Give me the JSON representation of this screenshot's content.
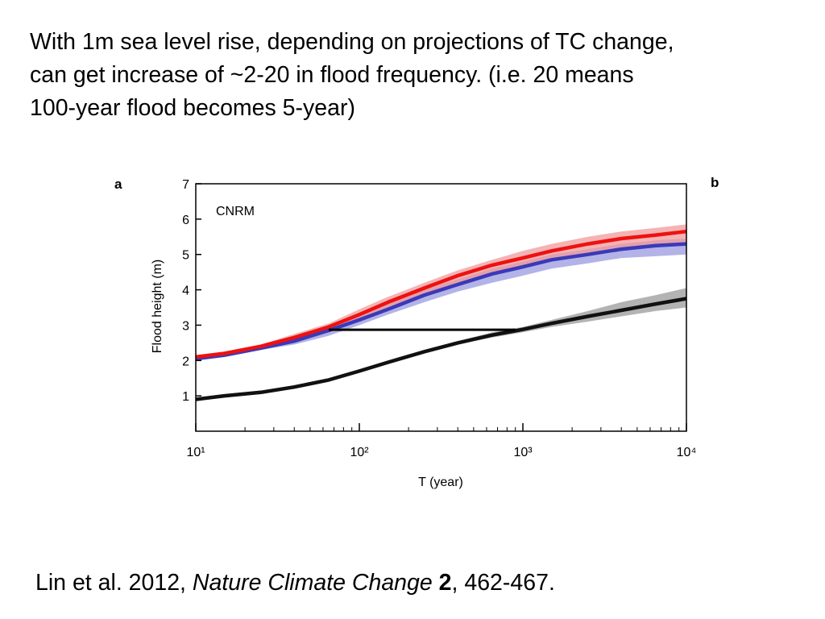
{
  "slide": {
    "headline_lines": [
      "With 1m sea level rise, depending on projections of TC change,",
      "can get increase of ~2-20 in flood frequency.  (i.e. 20 means",
      "100-year flood becomes 5-year)"
    ],
    "citation": {
      "authors_year": "Lin et al. 2012, ",
      "journal": "Nature Climate Change",
      "space": " ",
      "volume": "2",
      "pages": ", 462-467."
    }
  },
  "chart_data": {
    "type": "line",
    "panel_labels": [
      "a",
      "b"
    ],
    "annotation": "CNRM",
    "xlabel": "T (year)",
    "ylabel": "Flood height (m)",
    "x_scale": "log",
    "xlim": [
      10,
      10000
    ],
    "ylim": [
      0,
      7
    ],
    "x_ticks": [
      10,
      100,
      1000,
      10000
    ],
    "x_tick_labels": [
      "10¹",
      "10²",
      "10³",
      "10⁴"
    ],
    "y_ticks": [
      1,
      2,
      3,
      4,
      5,
      6,
      7
    ],
    "grid": false,
    "colors": {
      "red": "#ee1111",
      "red_band": "#f29a9a",
      "blue": "#3a3ab8",
      "blue_band": "#9a9ae0",
      "black": "#111111",
      "gray_band": "#9a9a9a"
    },
    "series": [
      {
        "color": "red",
        "x": [
          10,
          15,
          25,
          40,
          65,
          100,
          150,
          250,
          400,
          650,
          1000,
          1500,
          2500,
          4000,
          6500,
          10000
        ],
        "y": [
          2.1,
          2.2,
          2.4,
          2.65,
          2.95,
          3.3,
          3.65,
          4.05,
          4.4,
          4.7,
          4.9,
          5.1,
          5.3,
          5.45,
          5.55,
          5.65
        ],
        "band_low": [
          2.05,
          2.15,
          2.35,
          2.55,
          2.85,
          3.15,
          3.5,
          3.85,
          4.2,
          4.45,
          4.65,
          4.85,
          5.0,
          5.15,
          5.25,
          5.35
        ],
        "band_high": [
          2.15,
          2.25,
          2.45,
          2.75,
          3.05,
          3.45,
          3.8,
          4.2,
          4.55,
          4.85,
          5.1,
          5.3,
          5.5,
          5.65,
          5.75,
          5.85
        ]
      },
      {
        "color": "blue",
        "x": [
          10,
          15,
          25,
          40,
          65,
          100,
          150,
          250,
          400,
          650,
          1000,
          1500,
          2500,
          4000,
          6500,
          10000
        ],
        "y": [
          2.05,
          2.15,
          2.35,
          2.55,
          2.85,
          3.15,
          3.45,
          3.85,
          4.15,
          4.45,
          4.65,
          4.85,
          5.0,
          5.15,
          5.25,
          5.3
        ],
        "band_low": [
          2.0,
          2.1,
          2.3,
          2.45,
          2.7,
          3.0,
          3.3,
          3.65,
          3.95,
          4.2,
          4.4,
          4.6,
          4.75,
          4.9,
          4.95,
          5.0
        ],
        "band_high": [
          2.1,
          2.2,
          2.4,
          2.65,
          2.95,
          3.3,
          3.6,
          4.0,
          4.3,
          4.6,
          4.8,
          5.0,
          5.15,
          5.3,
          5.4,
          5.45
        ]
      },
      {
        "color": "black",
        "x": [
          10,
          15,
          25,
          40,
          65,
          100,
          150,
          250,
          400,
          650,
          1000,
          1500,
          2500,
          4000,
          6500,
          10000
        ],
        "y": [
          0.9,
          1.0,
          1.1,
          1.25,
          1.45,
          1.7,
          1.95,
          2.25,
          2.5,
          2.72,
          2.88,
          3.05,
          3.25,
          3.42,
          3.6,
          3.75
        ],
        "band_low": [
          0.85,
          0.95,
          1.05,
          1.2,
          1.4,
          1.65,
          1.9,
          2.2,
          2.45,
          2.65,
          2.8,
          2.95,
          3.1,
          3.25,
          3.4,
          3.5
        ],
        "band_high": [
          0.95,
          1.05,
          1.15,
          1.3,
          1.5,
          1.75,
          2.0,
          2.3,
          2.55,
          2.8,
          2.95,
          3.15,
          3.4,
          3.65,
          3.85,
          4.05
        ]
      }
    ],
    "reference_line": {
      "x": [
        65,
        900
      ],
      "y": 2.87
    }
  }
}
